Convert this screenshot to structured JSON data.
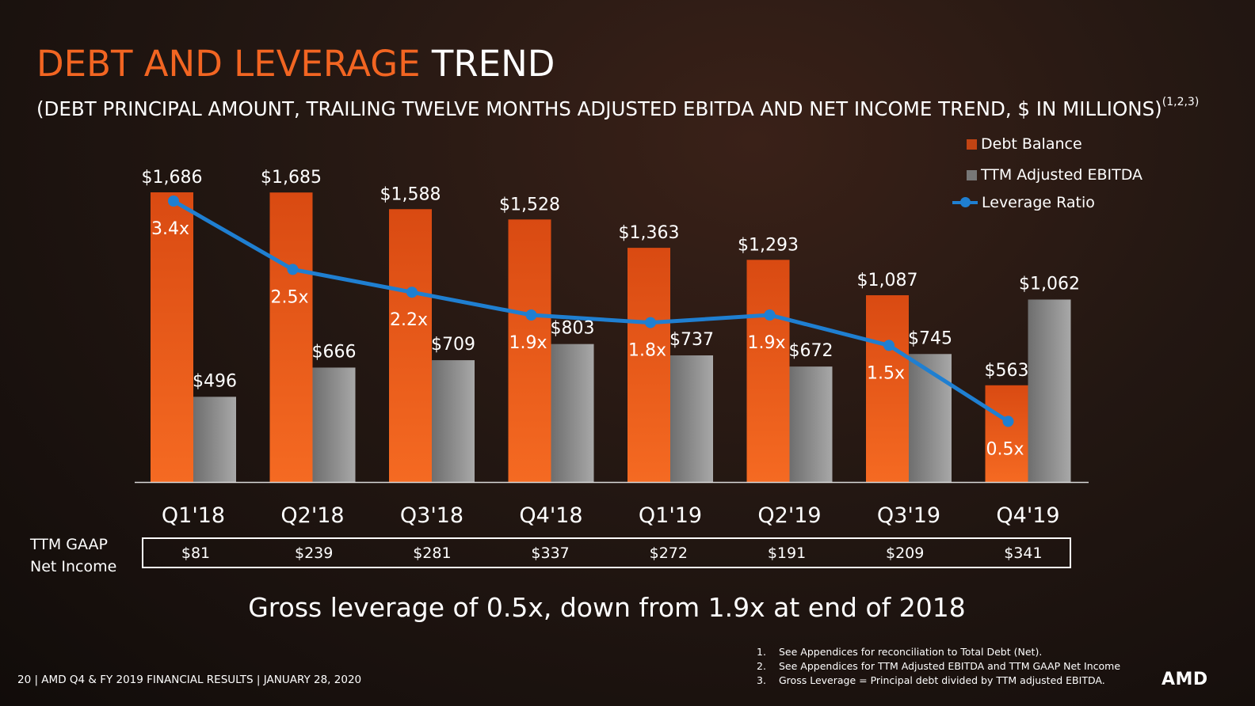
{
  "title": {
    "part1": "DEBT AND LEVERAGE",
    "part2": "TREND"
  },
  "subtitle": {
    "text": "(DEBT PRINCIPAL AMOUNT, TRAILING TWELVE MONTHS ADJUSTED EBITDA AND NET INCOME TREND, $ IN MILLIONS)",
    "superscript": "(1,2,3)"
  },
  "colors": {
    "debt": "#f26522",
    "ebitda": "#9a9a9a",
    "leverage": "#1f7fd1",
    "title_accent": "#f26522"
  },
  "chart_data": {
    "type": "bar",
    "categories": [
      "Q1'18",
      "Q2'18",
      "Q3'18",
      "Q4'18",
      "Q1'19",
      "Q2'19",
      "Q3'19",
      "Q4'19"
    ],
    "series": [
      {
        "name": "Debt Balance",
        "type": "bar",
        "values": [
          1686,
          1685,
          1588,
          1528,
          1363,
          1293,
          1087,
          563
        ],
        "labels": [
          "$1,686",
          "$1,685",
          "$1,588",
          "$1,528",
          "$1,363",
          "$1,293",
          "$1,087",
          "$563"
        ]
      },
      {
        "name": "TTM Adjusted EBITDA",
        "type": "bar",
        "values": [
          496,
          666,
          709,
          803,
          737,
          672,
          745,
          1062
        ],
        "labels": [
          "$496",
          "$666",
          "$709",
          "$803",
          "$737",
          "$672",
          "$745",
          "$1,062"
        ]
      },
      {
        "name": "Leverage Ratio",
        "type": "line",
        "axis": "secondary",
        "values": [
          3.4,
          2.5,
          2.2,
          1.9,
          1.8,
          1.9,
          1.5,
          0.5
        ],
        "labels": [
          "3.4x",
          "2.5x",
          "2.2x",
          "1.9x",
          "1.8x",
          "1.9x",
          "1.5x",
          "0.5x"
        ]
      }
    ],
    "ylim": [
      0,
      1700
    ],
    "grid": false,
    "legend": "top-right"
  },
  "net_income": {
    "label_line1": "TTM GAAP",
    "label_line2": "Net Income",
    "values": [
      "$81",
      "$239",
      "$281",
      "$337",
      "$272",
      "$191",
      "$209",
      "$341"
    ]
  },
  "headline": "Gross leverage of 0.5x, down from 1.9x at end of 2018",
  "footer": "20 | AMD Q4 & FY 2019 FINANCIAL RESULTS | JANUARY 28, 2020",
  "notes": [
    {
      "num": "1.",
      "text": "See  Appendices for  reconciliation to Total Debt (Net)."
    },
    {
      "num": "2.",
      "text": "See Appendices for TTM Adjusted EBITDA and TTM GAAP Net Income"
    },
    {
      "num": "3.",
      "text": "Gross Leverage  = Principal debt divided by TTM adjusted EBITDA."
    }
  ],
  "logo": "AMD"
}
